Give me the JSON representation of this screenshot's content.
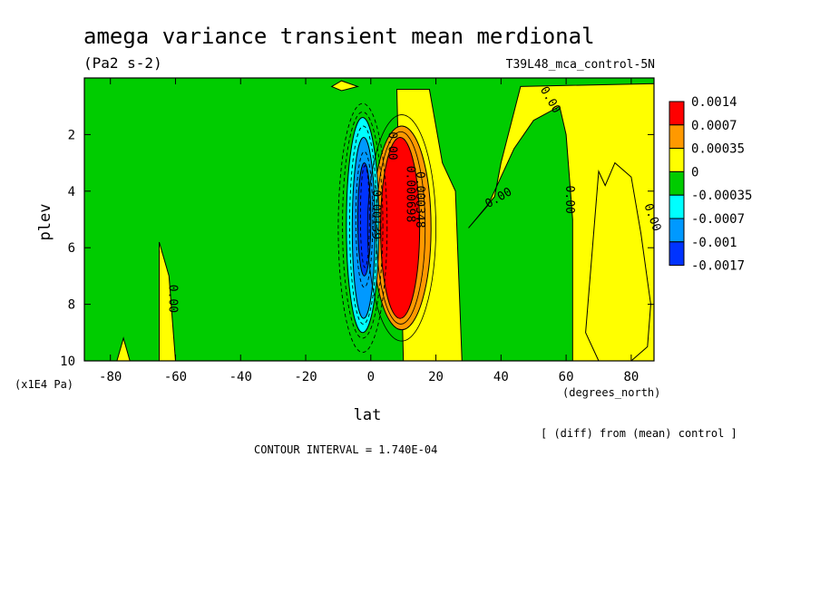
{
  "chart_data": {
    "type": "heatmap",
    "title": "amega variance transient mean merdional",
    "units": "(Pa2 s-2)",
    "run_label": "T39L48_mca_control-5N",
    "xlabel": "lat",
    "x_units": "(degrees_north)",
    "ylabel": "plev",
    "y_units": "(x1E4 Pa)",
    "xlim": [
      -88,
      87
    ],
    "ylim": [
      10,
      0
    ],
    "x_ticks": [
      -80,
      -60,
      -40,
      -20,
      0,
      20,
      40,
      60,
      80
    ],
    "y_ticks": [
      2,
      4,
      6,
      8,
      10
    ],
    "diff_note": "[ (diff) from (mean) control ]",
    "contour_interval": "CONTOUR INTERVAL = 1.740E-04",
    "contour_labels": [
      "0.00",
      "0.00",
      "0.00",
      "0.00",
      "0.00",
      "0.00",
      "0.000698",
      "0.000348",
      "-0.00139"
    ],
    "legend": {
      "placement": "right",
      "levels": [
        "0.0014",
        "0.0007",
        "0.00035",
        "0",
        "-0.00035",
        "-0.0007",
        "-0.001",
        "-0.0017"
      ],
      "colors": [
        "#ff0000",
        "#ff9900",
        "#ffff00",
        "#00cc00",
        "#00ffff",
        "#0099ff",
        "#0033ff"
      ]
    },
    "regions": [
      {
        "level": "pos_low",
        "color": "#ffff00",
        "polygon": [
          [
            10,
            10
          ],
          [
            8,
            0.4
          ],
          [
            18,
            0.4
          ],
          [
            22,
            3
          ],
          [
            26,
            4
          ],
          [
            28,
            10
          ]
        ]
      },
      {
        "level": "pos_low",
        "color": "#ffff00",
        "polygon": [
          [
            30,
            5.3
          ],
          [
            38,
            4.2
          ],
          [
            40,
            3
          ],
          [
            46,
            0.3
          ],
          [
            87,
            0.2
          ],
          [
            87,
            10
          ],
          [
            62,
            10
          ],
          [
            62,
            5
          ],
          [
            60,
            2
          ],
          [
            58,
            1
          ],
          [
            50,
            1.5
          ],
          [
            44,
            2.5
          ],
          [
            40,
            3.5
          ],
          [
            36,
            4.5
          ]
        ]
      },
      {
        "level": "pos_low",
        "color": "#ffff00",
        "polygon": [
          [
            -65,
            10
          ],
          [
            -65,
            5.8
          ],
          [
            -62,
            7
          ],
          [
            -60,
            10
          ]
        ]
      },
      {
        "level": "pos_low",
        "color": "#ffff00",
        "polygon": [
          [
            -78,
            10
          ],
          [
            -76,
            9.2
          ],
          [
            -74,
            10
          ]
        ]
      },
      {
        "level": "pos_low",
        "color": "#ffff00",
        "polygon": [
          [
            -12,
            0.3
          ],
          [
            -9,
            0.1
          ],
          [
            -4,
            0.3
          ],
          [
            -9,
            0.45
          ]
        ]
      },
      {
        "level": "pos_low",
        "color": "#ffff00",
        "polygon": [
          [
            66,
            9
          ],
          [
            70,
            3.3
          ],
          [
            72,
            3.8
          ],
          [
            75,
            3
          ],
          [
            80,
            3.5
          ],
          [
            83,
            5.5
          ],
          [
            86,
            8
          ],
          [
            85,
            9.5
          ],
          [
            80,
            10
          ],
          [
            70,
            10
          ]
        ]
      },
      {
        "level": "pos_mid",
        "color": "#ff9900",
        "ellipse": {
          "cx": 9.5,
          "cy": 5.3,
          "rx": 9,
          "ry": 3.6
        }
      },
      {
        "level": "pos_high",
        "color": "#ff0000",
        "ellipse": {
          "cx": 9,
          "cy": 5.3,
          "rx": 6,
          "ry": 3.2
        }
      },
      {
        "level": "neg_low",
        "color": "#00ffff",
        "ellipse": {
          "cx": -2.5,
          "cy": 5.2,
          "rx": 5,
          "ry": 3.8
        }
      },
      {
        "level": "neg_mid",
        "color": "#0099ff",
        "ellipse": {
          "cx": -2.2,
          "cy": 5.3,
          "rx": 3.5,
          "ry": 3.2
        }
      },
      {
        "level": "neg_high",
        "color": "#0033ff",
        "ellipse": {
          "cx": -2,
          "cy": 5,
          "rx": 2,
          "ry": 2
        }
      }
    ],
    "grid": false
  }
}
